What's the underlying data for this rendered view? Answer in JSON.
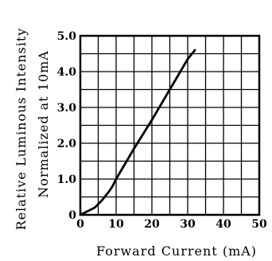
{
  "chart_data": {
    "type": "line",
    "title": "",
    "xlabel": "Forward Current (mA)",
    "ylabel_line1": "Relative Luminous Intensity",
    "ylabel_line2": "Normalized at 10mA",
    "xlim": [
      0,
      50
    ],
    "ylim": [
      0,
      5
    ],
    "x_ticks": [
      0,
      10,
      20,
      30,
      40,
      50
    ],
    "y_ticks": [
      0,
      1,
      2,
      3,
      4,
      5
    ],
    "x_tick_labels": [
      "0",
      "10",
      "20",
      "30",
      "40",
      "50"
    ],
    "y_tick_labels": [
      "0",
      "1.0",
      "2.0",
      "3.0",
      "4.0",
      "5.0"
    ],
    "grid": true,
    "series": [
      {
        "x": [
          0,
          2,
          4,
          6,
          8,
          9,
          10,
          15,
          20,
          25,
          30,
          32
        ],
        "y": [
          0,
          0.1,
          0.2,
          0.4,
          0.65,
          0.8,
          1.0,
          1.85,
          2.65,
          3.5,
          4.35,
          4.6
        ]
      }
    ]
  }
}
